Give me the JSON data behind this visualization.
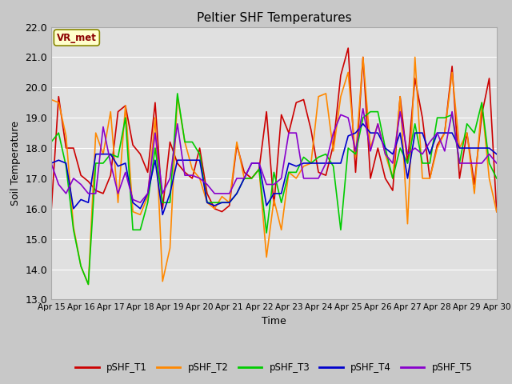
{
  "title": "Peltier SHF Temperatures",
  "xlabel": "Time",
  "ylabel": "Soil Temperature",
  "ylim": [
    13.0,
    22.0
  ],
  "yticks": [
    13.0,
    14.0,
    15.0,
    16.0,
    17.0,
    18.0,
    19.0,
    20.0,
    21.0,
    22.0
  ],
  "x_labels": [
    "Apr 15",
    "Apr 16",
    "Apr 17",
    "Apr 18",
    "Apr 19",
    "Apr 20",
    "Apr 21",
    "Apr 22",
    "Apr 23",
    "Apr 24",
    "Apr 25",
    "Apr 26",
    "Apr 27",
    "Apr 28",
    "Apr 29",
    "Apr 30"
  ],
  "series_names": [
    "pSHF_T1",
    "pSHF_T2",
    "pSHF_T3",
    "pSHF_T4",
    "pSHF_T5"
  ],
  "series_colors": [
    "#cc0000",
    "#ff8800",
    "#00cc00",
    "#0000cc",
    "#8800cc"
  ],
  "annotation_text": "VR_met",
  "fig_bg": "#c8c8c8",
  "plot_bg": "#e0e0e0",
  "T1": [
    15.9,
    19.7,
    18.0,
    18.0,
    17.1,
    16.9,
    16.6,
    16.5,
    17.1,
    19.2,
    19.4,
    18.1,
    17.8,
    17.2,
    19.5,
    16.0,
    18.2,
    17.5,
    17.2,
    17.0,
    18.0,
    16.5,
    16.0,
    15.9,
    16.1,
    18.1,
    17.2,
    17.0,
    17.3,
    19.2,
    16.1,
    19.1,
    18.5,
    19.5,
    19.6,
    18.6,
    17.2,
    17.1,
    18.1,
    20.4,
    21.3,
    17.2,
    21.0,
    17.0,
    18.0,
    17.0,
    16.6,
    19.7,
    17.5,
    20.3,
    19.0,
    17.0,
    18.1,
    18.5,
    20.7,
    17.0,
    18.5,
    16.8,
    19.1,
    20.3,
    15.9
  ],
  "T2": [
    19.6,
    19.5,
    18.4,
    15.4,
    14.1,
    13.5,
    18.5,
    17.8,
    19.2,
    16.2,
    19.4,
    15.9,
    15.8,
    16.4,
    19.0,
    13.6,
    14.7,
    19.7,
    18.2,
    17.3,
    17.0,
    16.2,
    16.0,
    16.4,
    16.2,
    18.2,
    17.0,
    17.0,
    17.3,
    14.4,
    16.3,
    15.3,
    17.2,
    17.0,
    17.4,
    17.5,
    19.7,
    19.8,
    17.9,
    19.7,
    20.5,
    17.7,
    21.0,
    18.0,
    18.8,
    17.8,
    17.0,
    19.7,
    15.5,
    21.0,
    17.0,
    17.0,
    18.0,
    18.5,
    20.5,
    18.0,
    18.5,
    16.5,
    19.5,
    17.0,
    15.9
  ],
  "T3": [
    18.2,
    18.5,
    17.4,
    15.3,
    14.1,
    13.5,
    17.5,
    17.5,
    17.8,
    17.7,
    19.0,
    15.3,
    15.3,
    16.2,
    18.0,
    16.2,
    16.2,
    19.8,
    18.2,
    18.2,
    17.8,
    16.2,
    16.2,
    16.2,
    16.2,
    16.5,
    17.0,
    17.0,
    17.3,
    15.2,
    17.2,
    16.2,
    17.2,
    17.2,
    17.7,
    17.5,
    17.7,
    17.8,
    17.4,
    15.3,
    18.0,
    17.8,
    19.0,
    19.2,
    19.2,
    18.0,
    17.0,
    18.0,
    17.5,
    18.8,
    17.5,
    17.5,
    19.0,
    19.0,
    19.1,
    17.5,
    18.8,
    18.5,
    19.5,
    17.5,
    17.0
  ],
  "T4": [
    17.5,
    17.6,
    17.5,
    16.0,
    16.3,
    16.2,
    17.8,
    17.8,
    17.8,
    17.4,
    17.5,
    16.2,
    16.0,
    16.5,
    17.6,
    15.8,
    16.5,
    17.6,
    17.6,
    17.6,
    17.6,
    16.2,
    16.1,
    16.2,
    16.2,
    16.5,
    17.0,
    17.5,
    17.5,
    16.1,
    16.5,
    16.5,
    17.5,
    17.4,
    17.5,
    17.5,
    17.5,
    17.5,
    17.5,
    17.5,
    18.4,
    18.5,
    18.8,
    18.5,
    18.5,
    18.0,
    17.8,
    18.5,
    17.0,
    18.5,
    18.5,
    17.8,
    18.5,
    18.5,
    18.5,
    18.0,
    18.0,
    18.0,
    18.0,
    18.0,
    17.8
  ],
  "T5": [
    17.5,
    16.8,
    16.5,
    17.0,
    16.8,
    16.5,
    16.5,
    18.7,
    17.5,
    16.5,
    17.2,
    16.3,
    16.2,
    16.5,
    18.5,
    16.5,
    17.0,
    18.8,
    17.1,
    17.1,
    17.0,
    16.8,
    16.5,
    16.5,
    16.5,
    17.0,
    17.0,
    17.5,
    17.5,
    16.8,
    16.8,
    17.0,
    18.5,
    18.5,
    17.0,
    17.0,
    17.0,
    17.5,
    18.5,
    19.1,
    19.0,
    17.9,
    19.3,
    17.9,
    18.8,
    17.8,
    17.5,
    19.2,
    17.8,
    18.0,
    17.8,
    18.2,
    18.5,
    17.9,
    19.2,
    17.5,
    17.5,
    17.5,
    17.5,
    17.8,
    17.5
  ]
}
